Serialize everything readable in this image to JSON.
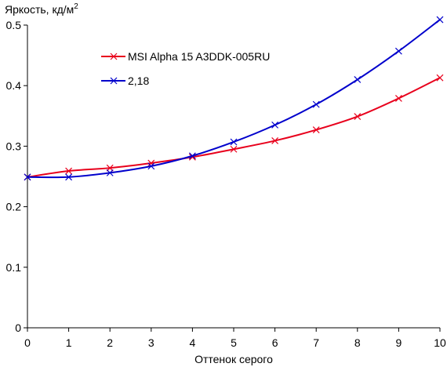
{
  "chart_data": {
    "type": "line",
    "title": "",
    "ylabel": "Яркость, кд/м",
    "ylabel_superscript": "2",
    "xlabel": "Оттенок серого",
    "xlim": [
      0,
      10
    ],
    "ylim": [
      0,
      0.5
    ],
    "x_ticks": [
      0,
      1,
      2,
      3,
      4,
      5,
      6,
      7,
      8,
      9,
      10
    ],
    "y_ticks": [
      0,
      0.1,
      0.2,
      0.3,
      0.4,
      0.5
    ],
    "y_tick_labels": [
      "0",
      "0.1",
      "0.2",
      "0.3",
      "0.4",
      "0.5"
    ],
    "grid": false,
    "legend_position": "top-left",
    "x": [
      0,
      1,
      2,
      3,
      4,
      5,
      6,
      7,
      8,
      9,
      10
    ],
    "series": [
      {
        "name": "MSI Alpha 15 A3DDK-005RU",
        "color": "#e8001c",
        "marker": "x",
        "values": [
          0.249,
          0.259,
          0.264,
          0.272,
          0.282,
          0.295,
          0.309,
          0.327,
          0.349,
          0.379,
          0.413
        ]
      },
      {
        "name": "2,18",
        "color": "#0000cc",
        "marker": "x",
        "values": [
          0.249,
          0.249,
          0.256,
          0.267,
          0.284,
          0.307,
          0.335,
          0.369,
          0.41,
          0.457,
          0.509
        ]
      }
    ]
  }
}
